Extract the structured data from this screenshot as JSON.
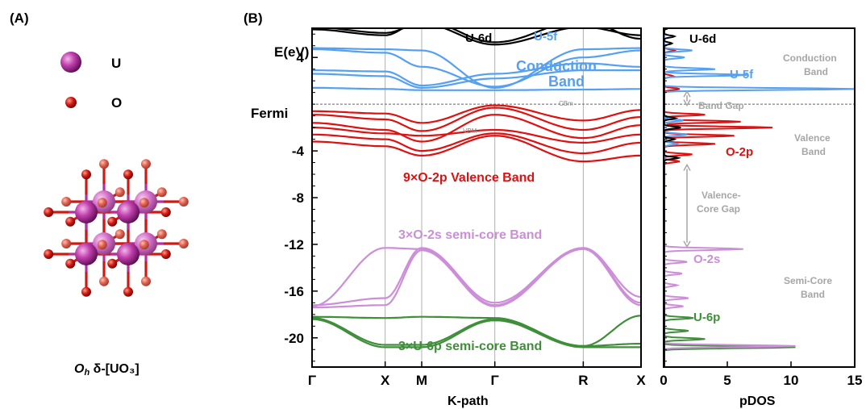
{
  "panelA": {
    "label": "(A)",
    "legend": [
      {
        "symbol": "U",
        "color": "#9b1f88"
      },
      {
        "symbol": "O",
        "color": "#c81414"
      }
    ],
    "caption_italic": "O",
    "caption_sub": "h",
    "caption_rest": " δ-[UO₃]"
  },
  "panelB": {
    "label": "(B)"
  },
  "colors": {
    "u6d": "#000000",
    "u5f": "#55a0f0",
    "o2p": "#dd1111",
    "o2s": "#cc8ed8",
    "u6p": "#3f8f3a",
    "annot": "#a6a6a6"
  },
  "chart_data": [
    {
      "type": "line",
      "title": "",
      "xlabel": "K-path",
      "ylabel": "E(eV)",
      "fermi_label": "Fermi",
      "fermi_energy": 0,
      "ylim": [
        -22.5,
        6.5
      ],
      "yticks": [
        4,
        -4,
        -8,
        -12,
        -16,
        -20
      ],
      "kpoints": [
        "Γ",
        "X",
        "M",
        "Γ",
        "R",
        "X"
      ],
      "kpoint_positions": [
        0,
        1,
        1.5,
        2.5,
        3.71,
        4.5
      ],
      "markers": [
        "VBM",
        "CBm"
      ],
      "band_groups": [
        {
          "name": "U-6d",
          "color": "#000000",
          "bands": [
            [
              6.4,
              5.9,
              7.2,
              5.3,
              7.2,
              5.6
            ],
            [
              6.6,
              6.1,
              6.9,
              5.1,
              6.6,
              5.9
            ]
          ]
        },
        {
          "name": "U-5f Conduction Band",
          "color": "#55a0f0",
          "bands": [
            [
              4.8,
              4.7,
              4.6,
              1.4,
              4.7,
              4.8
            ],
            [
              4.7,
              4.4,
              3.2,
              1.5,
              4.0,
              4.6
            ],
            [
              2.9,
              2.8,
              1.6,
              2.6,
              3.5,
              3.2
            ],
            [
              2.6,
              2.4,
              1.4,
              2.2,
              2.9,
              2.9
            ],
            [
              1.4,
              1.3,
              1.2,
              1.2,
              1.25,
              1.3
            ]
          ]
        },
        {
          "name": "9×O-2p Valence Band",
          "color": "#dd1111",
          "bands": [
            [
              -0.6,
              -0.8,
              -1.6,
              -0.1,
              -1.4,
              -0.5
            ],
            [
              -0.9,
              -1.3,
              -2.3,
              -0.3,
              -2.2,
              -1.1
            ],
            [
              -1.6,
              -2.2,
              -3.2,
              -0.9,
              -2.9,
              -1.8
            ],
            [
              -2.0,
              -2.5,
              -2.7,
              -2.2,
              -3.3,
              -2.6
            ],
            [
              -2.6,
              -3.0,
              -4.0,
              -2.5,
              -4.2,
              -3.3
            ],
            [
              -3.2,
              -3.6,
              -4.4,
              -2.7,
              -4.9,
              -4.4
            ]
          ]
        },
        {
          "name": "3×O-2s semi-core Band",
          "color": "#cc8ed8",
          "bands": [
            [
              -17.2,
              -16.6,
              -12.3,
              -17.0,
              -12.3,
              -16.5
            ],
            [
              -17.3,
              -12.3,
              -12.4,
              -17.2,
              -12.3,
              -17.0
            ],
            [
              -17.4,
              -17.2,
              -12.5,
              -17.3,
              -12.4,
              -17.2
            ]
          ]
        },
        {
          "name": "3×U-6p semi-core Band",
          "color": "#3f8f3a",
          "bands": [
            [
              -18.2,
              -18.3,
              -18.2,
              -18.3,
              -20.7,
              -18.1
            ],
            [
              -18.3,
              -20.6,
              -20.6,
              -18.4,
              -20.7,
              -20.5
            ],
            [
              -18.4,
              -20.8,
              -20.8,
              -18.5,
              -20.8,
              -20.8
            ]
          ]
        }
      ],
      "annotations": [
        "U-6d",
        "U-5f",
        "Conduction",
        "Band",
        "9×O-2p Valence Band",
        "3×O-2s semi-core Band",
        "3×U-6p semi-core Band"
      ]
    },
    {
      "type": "line",
      "title": "",
      "xlabel": "pDOS",
      "xlim": [
        0,
        15
      ],
      "xticks": [
        0,
        5,
        10,
        15
      ],
      "series": [
        {
          "name": "U-6d",
          "color": "#000000",
          "peaks": [
            [
              6.6,
              1.2
            ],
            [
              5.8,
              0.8
            ],
            [
              5.2,
              0.6
            ],
            [
              -1.2,
              0.9
            ],
            [
              -2.0,
              1.3
            ],
            [
              -3.0,
              0.8
            ],
            [
              -4.6,
              1.1
            ]
          ]
        },
        {
          "name": "U-5f",
          "color": "#55a0f0",
          "peaks": [
            [
              1.3,
              15.0
            ],
            [
              2.5,
              6.5
            ],
            [
              3.0,
              4.0
            ],
            [
              4.6,
              2.2
            ],
            [
              4.0,
              1.6
            ],
            [
              -1.4,
              1.5
            ],
            [
              -2.6,
              1.8
            ],
            [
              -3.4,
              1.0
            ]
          ]
        },
        {
          "name": "O-2p",
          "color": "#dd1111",
          "peaks": [
            [
              -0.9,
              3.2
            ],
            [
              -1.5,
              6.0
            ],
            [
              -2.0,
              8.5
            ],
            [
              -2.7,
              5.5
            ],
            [
              -3.4,
              4.0
            ],
            [
              -4.3,
              2.2
            ],
            [
              -4.9,
              1.2
            ],
            [
              4.6,
              0.8
            ],
            [
              2.4,
              0.7
            ],
            [
              1.3,
              1.2
            ]
          ]
        },
        {
          "name": "O-2s",
          "color": "#cc8ed8",
          "peaks": [
            [
              -12.4,
              6.2
            ],
            [
              -13.5,
              1.8
            ],
            [
              -14.5,
              1.4
            ],
            [
              -15.5,
              1.0
            ],
            [
              -16.6,
              1.9
            ],
            [
              -17.3,
              1.5
            ],
            [
              -20.7,
              10.3
            ]
          ]
        },
        {
          "name": "U-6p",
          "color": "#3f8f3a",
          "peaks": [
            [
              -18.3,
              2.3
            ],
            [
              -19.4,
              1.9
            ],
            [
              -20.1,
              3.2
            ],
            [
              -20.8,
              10.3
            ]
          ]
        }
      ],
      "annotations": [
        "U-6d",
        "U-5f",
        "O-2p",
        "O-2s",
        "U-6p",
        "Conduction",
        "Band",
        "Band Gap",
        "Valence",
        "Band",
        "Valence-",
        "Core Gap",
        "Semi-Core",
        "Band"
      ]
    }
  ]
}
